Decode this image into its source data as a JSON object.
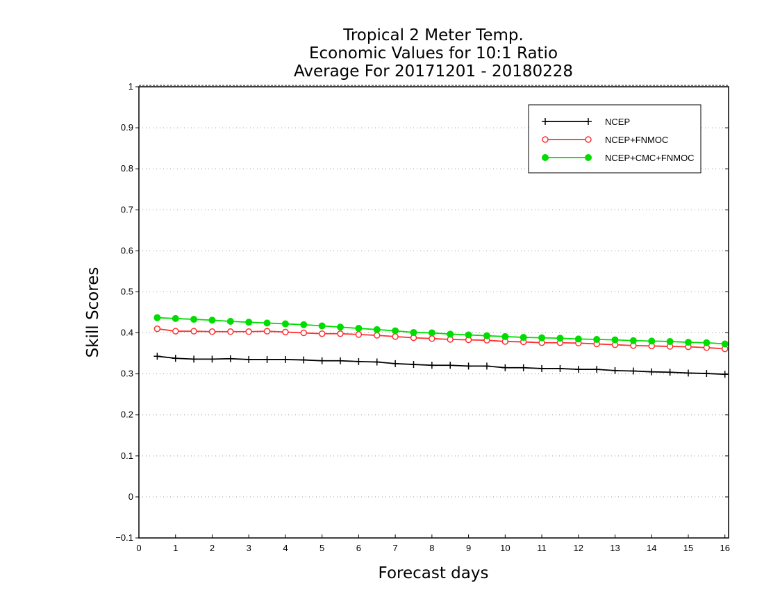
{
  "chart_data": {
    "type": "line",
    "title": [
      "Tropical 2 Meter Temp.",
      "Economic Values for 10:1 Ratio",
      "Average For 20171201 - 20180228"
    ],
    "xlabel": "Forecast days",
    "ylabel": "Skill Scores",
    "xlim": [
      0,
      16.1
    ],
    "ylim": [
      -0.1,
      1
    ],
    "xticks": [
      "0",
      "1",
      "2",
      "3",
      "4",
      "5",
      "6",
      "7",
      "8",
      "9",
      "10",
      "11",
      "12",
      "13",
      "14",
      "15",
      "16"
    ],
    "yticks": [
      "−0.1",
      "0",
      "0.1",
      "0.2",
      "0.3",
      "0.4",
      "0.5",
      "0.6",
      "0.7",
      "0.8",
      "0.9",
      "1"
    ],
    "grid": "horizontal dotted",
    "legend_position": "top-right",
    "x": [
      0.5,
      1.0,
      1.5,
      2.0,
      2.5,
      3.0,
      3.5,
      4.0,
      4.5,
      5.0,
      5.5,
      6.0,
      6.5,
      7.0,
      7.5,
      8.0,
      8.5,
      9.0,
      9.5,
      10.0,
      10.5,
      11.0,
      11.5,
      12.0,
      12.5,
      13.0,
      13.5,
      14.0,
      14.5,
      15.0,
      15.5,
      16.0
    ],
    "series": [
      {
        "name": "NCEP",
        "color": "#000000",
        "marker": "plus",
        "values": [
          0.343,
          0.338,
          0.336,
          0.336,
          0.337,
          0.335,
          0.335,
          0.335,
          0.334,
          0.332,
          0.332,
          0.33,
          0.329,
          0.325,
          0.323,
          0.321,
          0.321,
          0.319,
          0.319,
          0.315,
          0.315,
          0.313,
          0.313,
          0.311,
          0.311,
          0.308,
          0.307,
          0.305,
          0.304,
          0.302,
          0.301,
          0.299
        ]
      },
      {
        "name": "NCEP+FNMOC",
        "color": "#ff3030",
        "marker": "open-circle",
        "values": [
          0.41,
          0.404,
          0.404,
          0.403,
          0.403,
          0.403,
          0.404,
          0.402,
          0.4,
          0.398,
          0.398,
          0.396,
          0.394,
          0.391,
          0.388,
          0.386,
          0.384,
          0.383,
          0.382,
          0.379,
          0.378,
          0.376,
          0.376,
          0.375,
          0.373,
          0.371,
          0.369,
          0.368,
          0.367,
          0.366,
          0.364,
          0.361
        ]
      },
      {
        "name": "NCEP+CMC+FNMOC",
        "color": "#00dd00",
        "marker": "filled-circle",
        "values": [
          0.437,
          0.435,
          0.433,
          0.431,
          0.428,
          0.426,
          0.424,
          0.422,
          0.42,
          0.417,
          0.414,
          0.411,
          0.408,
          0.405,
          0.401,
          0.4,
          0.397,
          0.395,
          0.393,
          0.391,
          0.389,
          0.388,
          0.387,
          0.385,
          0.384,
          0.383,
          0.381,
          0.38,
          0.379,
          0.377,
          0.376,
          0.373
        ]
      }
    ]
  }
}
